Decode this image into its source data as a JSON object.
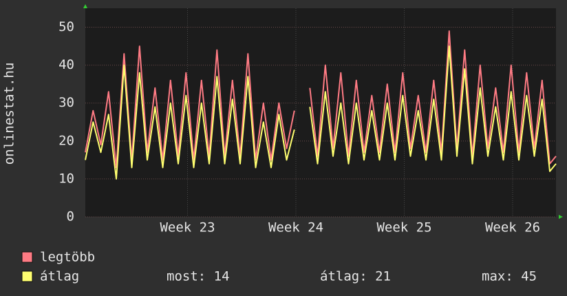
{
  "chart_data": {
    "type": "line",
    "y_label": "onlinestat.hu",
    "x": [
      0,
      0.5,
      1,
      1.5,
      2,
      2.5,
      3,
      3.5,
      4,
      4.5,
      5,
      5.5,
      6,
      6.5,
      7,
      7.5,
      8,
      8.5,
      9,
      9.5,
      10,
      10.5,
      11,
      11.5,
      12,
      12.5,
      13,
      13.5,
      14,
      14.5,
      15,
      15.5,
      16,
      16.5,
      17,
      17.5,
      18,
      18.5,
      19,
      19.5,
      20,
      20.5,
      21,
      21.5,
      22,
      22.5,
      23,
      23.5,
      24,
      24.5,
      25,
      25.5,
      26,
      26.5,
      27,
      27.5,
      28,
      28.5,
      29,
      29.5,
      30,
      30.4
    ],
    "xlim": [
      0,
      30.4
    ],
    "xticks": [
      {
        "value": 6.6,
        "label": "Week 23"
      },
      {
        "value": 13.6,
        "label": "Week 24"
      },
      {
        "value": 20.6,
        "label": "Week 25"
      },
      {
        "value": 27.6,
        "label": "Week 26"
      }
    ],
    "ylim": [
      0,
      55
    ],
    "yticks": [
      0,
      10,
      20,
      30,
      40,
      50
    ],
    "grid": true,
    "series": [
      {
        "name": "legtöbb",
        "color": "#ff7b84",
        "values": [
          17,
          28,
          19,
          33,
          13,
          43,
          15,
          45,
          17,
          34,
          15,
          36,
          16,
          38,
          15,
          36,
          16,
          44,
          16,
          36,
          16,
          43,
          15,
          30,
          15,
          30,
          18,
          28,
          null,
          34,
          16,
          40,
          18,
          38,
          16,
          36,
          17,
          32,
          17,
          35,
          17,
          38,
          18,
          32,
          17,
          36,
          17,
          49,
          18,
          44,
          16,
          40,
          18,
          34,
          17,
          40,
          17,
          38,
          18,
          36,
          14,
          16
        ]
      },
      {
        "name": "átlag",
        "color": "#ffff70",
        "values": [
          15,
          25,
          17,
          27,
          10,
          40,
          13,
          38,
          15,
          29,
          13,
          30,
          14,
          32,
          13,
          30,
          14,
          37,
          14,
          31,
          14,
          37,
          13,
          25,
          13,
          27,
          15,
          23,
          null,
          29,
          14,
          33,
          16,
          30,
          14,
          30,
          15,
          28,
          15,
          30,
          15,
          32,
          16,
          28,
          15,
          31,
          15,
          45,
          16,
          39,
          14,
          34,
          16,
          29,
          15,
          33,
          15,
          32,
          16,
          31,
          12,
          14
        ]
      }
    ],
    "stats": [
      "most: 14",
      "átlag: 21",
      "max: 45"
    ]
  }
}
